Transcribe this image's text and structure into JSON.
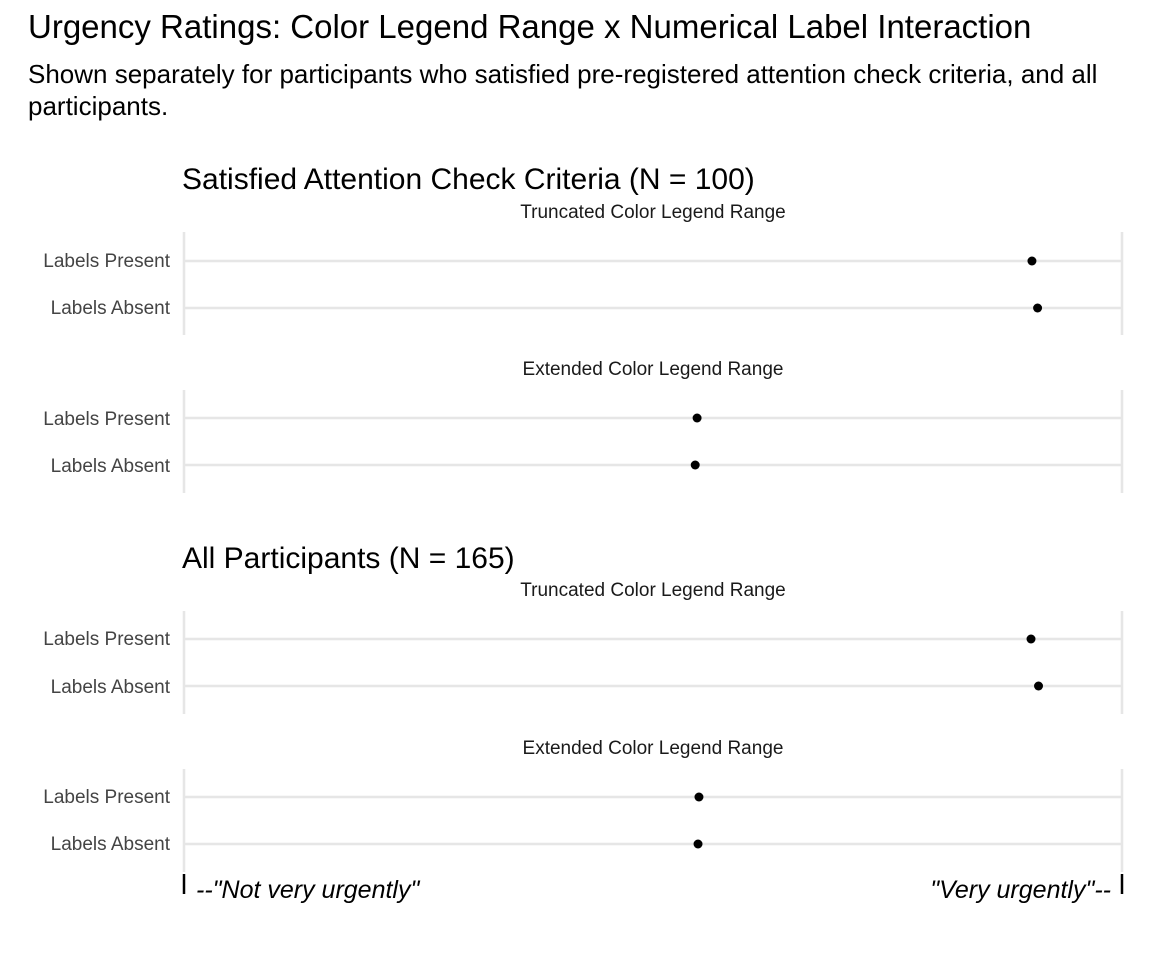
{
  "title": "Urgency Ratings: Color Legend Range x Numerical Label Interaction",
  "subtitle": "Shown separately for participants who satisfied pre-registered attention check criteria, and all participants.",
  "chart_data": {
    "type": "scatter",
    "x_range": [
      0,
      1
    ],
    "x_axis_anchors": {
      "low": "--\"Not very urgently\"",
      "high": "\"Very urgently\"--"
    },
    "grid": true,
    "groups": [
      {
        "title": "Satisfied Attention Check Criteria (N = 100)",
        "panels": [
          {
            "strip": "Truncated Color Legend Range",
            "categories": [
              "Labels Present",
              "Labels Absent"
            ],
            "values": [
              0.904,
              0.91
            ]
          },
          {
            "strip": "Extended Color Legend Range",
            "categories": [
              "Labels Present",
              "Labels Absent"
            ],
            "values": [
              0.547,
              0.545
            ]
          }
        ]
      },
      {
        "title": "All Participants (N = 165)",
        "panels": [
          {
            "strip": "Truncated Color Legend Range",
            "categories": [
              "Labels Present",
              "Labels Absent"
            ],
            "values": [
              0.903,
              0.911
            ]
          },
          {
            "strip": "Extended Color Legend Range",
            "categories": [
              "Labels Present",
              "Labels Absent"
            ],
            "values": [
              0.549,
              0.548
            ]
          }
        ]
      }
    ]
  }
}
